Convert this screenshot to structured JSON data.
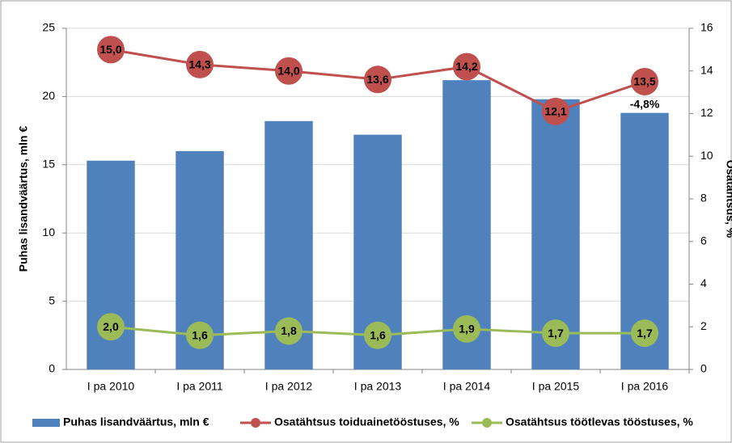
{
  "chart_data": {
    "type": "bar",
    "categories": [
      "I pa 2010",
      "I pa 2011",
      "I pa 2012",
      "I pa 2013",
      "I pa 2014",
      "I pa 2015",
      "I pa 2016"
    ],
    "ylabel": "Puhas lisandväärtus, mln €",
    "y2label": "Osatähtsus, %",
    "ylim": [
      0,
      25
    ],
    "yticks": [
      0,
      5,
      10,
      15,
      20,
      25
    ],
    "y2lim": [
      0,
      16
    ],
    "y2ticks": [
      0,
      2,
      4,
      6,
      8,
      10,
      12,
      14,
      16
    ],
    "grid": true,
    "annotation": "-4,8%",
    "series": [
      {
        "name": "Puhas lisandväärtus, mln €",
        "type": "bar",
        "color": "#4f81bd",
        "values": [
          15.3,
          16.0,
          18.2,
          17.2,
          21.2,
          19.8,
          18.8
        ]
      },
      {
        "name": "Osatähtsus toiduainetööstuses, %",
        "type": "line",
        "axis": "y2",
        "color": "#c0504d",
        "values": [
          15.0,
          14.3,
          14.0,
          13.6,
          14.2,
          12.1,
          13.5
        ],
        "value_labels": [
          "15,0",
          "14,3",
          "14,0",
          "13,6",
          "14,2",
          "12,1",
          "13,5"
        ]
      },
      {
        "name": "Osatähtsus töötlevas tööstuses, %",
        "type": "line",
        "axis": "y2",
        "color": "#9bbb59",
        "values": [
          2.0,
          1.6,
          1.8,
          1.6,
          1.9,
          1.7,
          1.7
        ],
        "value_labels": [
          "2,0",
          "1,6",
          "1,8",
          "1,6",
          "1,9",
          "1,7",
          "1,7"
        ]
      }
    ]
  }
}
